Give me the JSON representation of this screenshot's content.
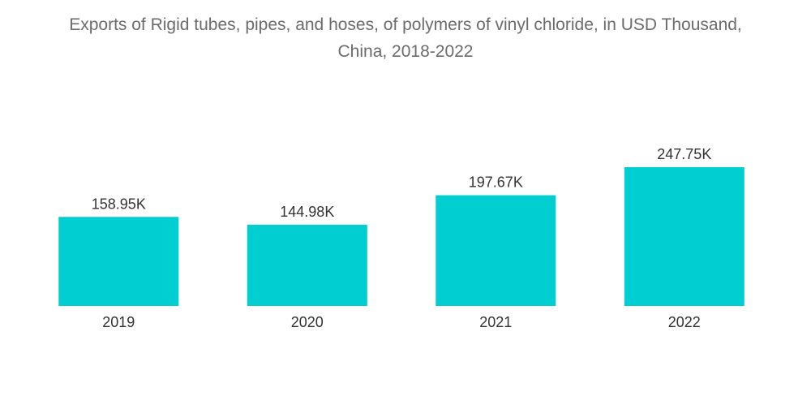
{
  "chart_data": {
    "type": "bar",
    "title_line1": "Exports of Rigid tubes, pipes, and hoses, of polymers of vinyl chloride, in USD Thousand,",
    "title_line2": "China, 2018-2022",
    "categories": [
      "2019",
      "2020",
      "2021",
      "2022"
    ],
    "values": [
      158.95,
      144.98,
      197.67,
      247.75
    ],
    "data_labels": [
      "158.95K",
      "144.98K",
      "197.67K",
      "247.75K"
    ],
    "xlabel": "",
    "ylabel": "",
    "ylim": [
      0,
      247.75
    ],
    "grid": false,
    "legend": "none",
    "bar_color": "#00CED1"
  }
}
